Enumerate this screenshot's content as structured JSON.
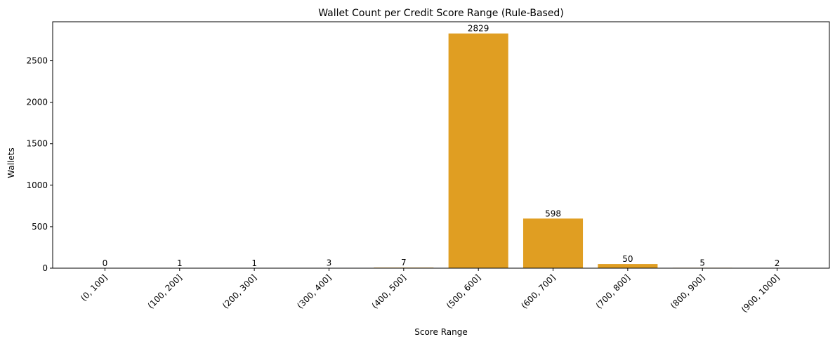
{
  "chart_data": {
    "type": "bar",
    "title": "Wallet Count per Credit Score Range (Rule-Based)",
    "xlabel": "Score Range",
    "ylabel": "Wallets",
    "categories": [
      "(0, 100]",
      "(100, 200]",
      "(200, 300]",
      "(300, 400]",
      "(400, 500]",
      "(500, 600]",
      "(600, 700]",
      "(700, 800]",
      "(800, 900]",
      "(900, 1000]"
    ],
    "values": [
      0,
      1,
      1,
      3,
      7,
      2829,
      598,
      50,
      5,
      2
    ],
    "data_labels": [
      "0",
      "1",
      "1",
      "3",
      "7",
      "2829",
      "598",
      "50",
      "5",
      "2"
    ],
    "yticks": [
      0,
      500,
      1000,
      1500,
      2000,
      2500
    ],
    "ytick_labels": [
      "0",
      "500",
      "1000",
      "1500",
      "2000",
      "2500"
    ],
    "ylim": [
      0,
      2970
    ],
    "grid": false,
    "bar_color": "#e09e22"
  }
}
